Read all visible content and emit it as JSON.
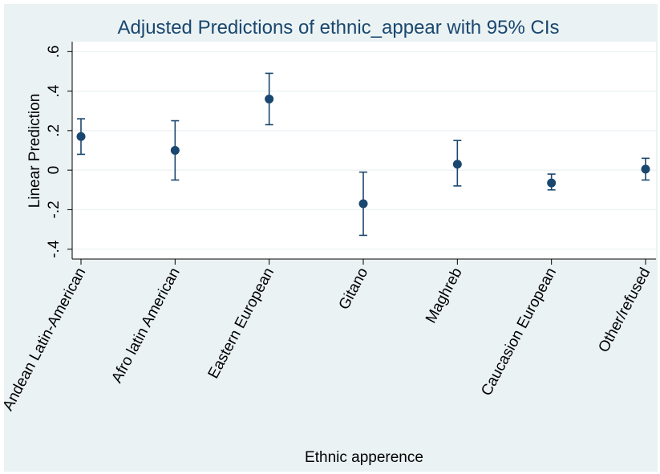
{
  "chart_data": {
    "type": "scatter",
    "title": "Adjusted Predictions of ethnic_appear with 95% CIs",
    "xlabel": "Ethnic apperence",
    "ylabel": "Linear Prediction",
    "ylim": [
      -0.45,
      0.65
    ],
    "yticks": [
      -0.4,
      -0.2,
      0,
      0.2,
      0.4,
      0.6
    ],
    "ytick_labels": [
      "-.4",
      "-.2",
      "0",
      ".2",
      ".4",
      ".6"
    ],
    "grid": true,
    "categories": [
      "Andean Latin-American",
      "Afro latin American",
      "Eastern European",
      "Gitano",
      "Maghreb",
      "Caucasion European",
      "Other/refused"
    ],
    "estimate": [
      0.17,
      0.1,
      0.36,
      -0.17,
      0.03,
      -0.065,
      0.005
    ],
    "ci_lower": [
      0.08,
      -0.05,
      0.23,
      -0.33,
      -0.08,
      -0.1,
      -0.05
    ],
    "ci_upper": [
      0.26,
      0.25,
      0.49,
      -0.01,
      0.15,
      -0.02,
      0.06
    ],
    "colors": {
      "marker": "#1a476f",
      "background": "#eaf2f3",
      "plot_bg": "#ffffff",
      "grid": "#eaf2f3"
    }
  }
}
